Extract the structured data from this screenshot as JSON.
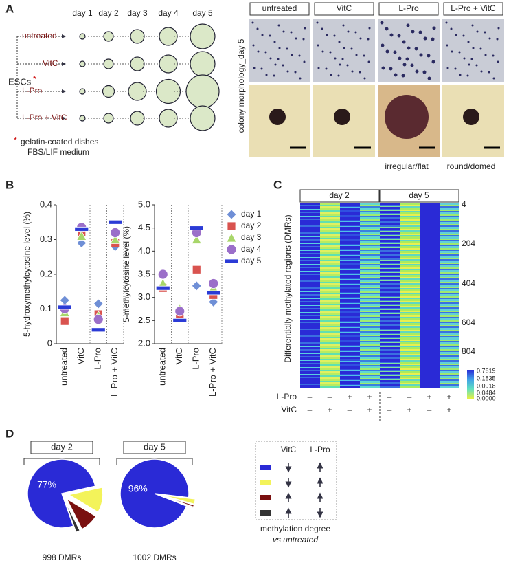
{
  "panel_a": {
    "letter": "A",
    "days": [
      "day 1",
      "day 2",
      "day 3",
      "day 4",
      "day 5"
    ],
    "rows": [
      "untreated",
      "VitC",
      "L-Pro",
      "L-Pro + VitC"
    ],
    "stem_label": "ESCs",
    "stem_mark": "*",
    "footnote_mark": "*",
    "footnote": [
      "gelatin-coated dishes",
      "FBS/LIF medium"
    ],
    "photo_headers": [
      "untreated",
      "VitC",
      "L-Pro",
      "L-Pro + VitC"
    ],
    "photo_side_label": "colony morphology_day 5",
    "photo_captions": [
      "irregular/flat",
      "round/domed"
    ]
  },
  "panel_b": {
    "letter": "B"
  },
  "panel_c": {
    "letter": "C",
    "headers": [
      "day 2",
      "day 5"
    ],
    "y_label": "Differentially methylated regions (DMRs)",
    "row_ticks": [
      "4",
      "204",
      "404",
      "604",
      "804"
    ],
    "colorbar_ticks": [
      "0.7619",
      "0.1835",
      "0.0918",
      "0.0484",
      "0.0000"
    ],
    "condition_rows": [
      {
        "name": "L-Pro",
        "signs": [
          "–",
          "–",
          "+",
          "+",
          "–",
          "–",
          "+",
          "+"
        ]
      },
      {
        "name": "VitC",
        "signs": [
          "–",
          "+",
          "–",
          "+",
          "–",
          "+",
          "–",
          "+"
        ]
      }
    ]
  },
  "panel_d": {
    "letter": "D",
    "legend_headers": [
      "VitC",
      "L-Pro"
    ],
    "caption": [
      "methylation degree",
      "vs untreated"
    ]
  },
  "chart_data": [
    {
      "type": "point",
      "y_label": "5-hydroxymethylcytosine level (%)",
      "categories": [
        "untreated",
        "VitC",
        "L-Pro",
        "L-Pro + VitC"
      ],
      "ylim": [
        0,
        0.4
      ],
      "yticks": [
        0,
        0.1,
        0.2,
        0.3,
        0.4
      ],
      "series": [
        {
          "name": "day 1",
          "marker": "diamond",
          "color": "#6f8fd6",
          "values": [
            0.125,
            0.29,
            0.115,
            0.28
          ]
        },
        {
          "name": "day 2",
          "marker": "square",
          "color": "#d9534f",
          "values": [
            0.065,
            0.32,
            0.085,
            0.29
          ]
        },
        {
          "name": "day 3",
          "marker": "triangle",
          "color": "#a8d66a",
          "values": [
            0.09,
            0.31,
            0.08,
            0.3
          ]
        },
        {
          "name": "day 4",
          "marker": "circle",
          "color": "#9b6fc9",
          "values": [
            0.1,
            0.335,
            0.07,
            0.32
          ]
        },
        {
          "name": "day 5",
          "marker": "bar",
          "color": "#2b3bd6",
          "values": [
            0.105,
            0.33,
            0.04,
            0.35
          ]
        }
      ]
    },
    {
      "type": "point",
      "y_label": "5-methylcytosine level (%)",
      "categories": [
        "untreated",
        "VitC",
        "L-Pro",
        "L-Pro + VitC"
      ],
      "ylim": [
        2,
        5
      ],
      "yticks": [
        {
          "value": 2,
          "label": "2.0"
        },
        {
          "value": 2.5,
          "label": "2.5"
        },
        {
          "value": 3,
          "label": "3.0"
        },
        {
          "value": 3.5,
          "label": "3.5"
        },
        {
          "value": 4,
          "label": "4.0"
        },
        {
          "value": 4.5,
          "label": "4.5"
        },
        {
          "value": 5,
          "label": "5.0"
        }
      ],
      "legend": "right",
      "series": [
        {
          "name": "day 1",
          "marker": "diamond",
          "color": "#6f8fd6",
          "values": [
            3.2,
            2.55,
            3.25,
            2.9
          ]
        },
        {
          "name": "day 2",
          "marker": "square",
          "color": "#d9534f",
          "values": [
            3.2,
            2.6,
            3.6,
            3.05
          ]
        },
        {
          "name": "day 3",
          "marker": "triangle",
          "color": "#a8d66a",
          "values": [
            3.3,
            2.75,
            4.25,
            3.2
          ]
        },
        {
          "name": "day 4",
          "marker": "circle",
          "color": "#9b6fc9",
          "values": [
            3.5,
            2.7,
            4.4,
            3.3
          ]
        },
        {
          "name": "day 5",
          "marker": "bar",
          "color": "#2b3bd6",
          "values": [
            3.2,
            2.5,
            4.5,
            3.1
          ]
        }
      ]
    },
    {
      "type": "pie",
      "title": "day 2",
      "caption": "998 DMRs",
      "values": [
        77,
        12,
        9,
        2
      ],
      "value_labels": [
        "77%",
        null,
        null,
        null
      ],
      "colors": [
        "#2a2ad6",
        "#f3f35a",
        "#7a1010",
        "#333333"
      ]
    },
    {
      "type": "pie",
      "title": "day 5",
      "caption": "1002 DMRs",
      "values": [
        96,
        2.5,
        1,
        0.5
      ],
      "value_labels": [
        "96%",
        null,
        null,
        null
      ],
      "colors": [
        "#2a2ad6",
        "#f3f35a",
        "#7a1010",
        "#333333"
      ]
    }
  ]
}
